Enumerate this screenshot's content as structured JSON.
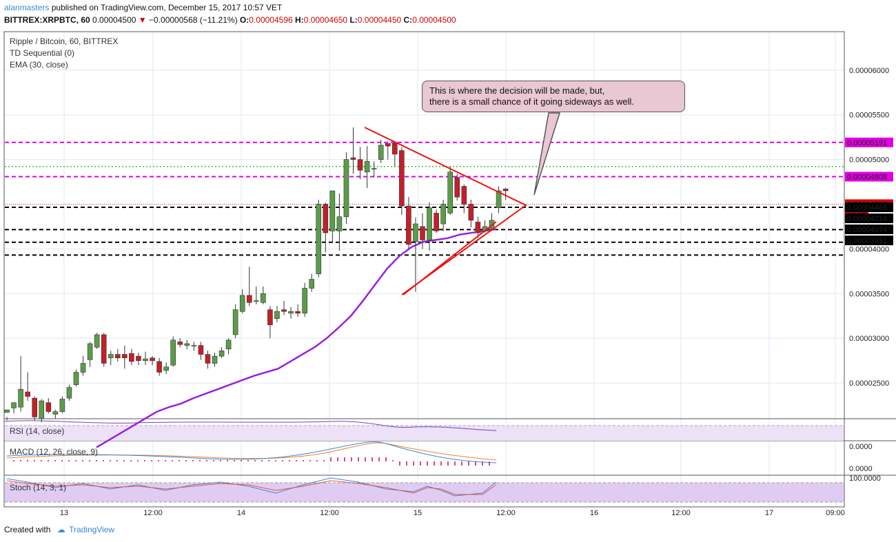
{
  "header": {
    "user": "alanmasters",
    "published_text": "published on TradingView.com, December 15, 2017 10:57 VET",
    "symbol": "BITTREX:XRPBTC, 60",
    "last": "0.00004500",
    "change": "−0.00000568 (−11.21%)",
    "o_label": "O:",
    "o": "0.00004596",
    "h_label": "H:",
    "h": "0.00004650",
    "l_label": "L:",
    "l": "0.00004450",
    "c_label": "C:",
    "c": "0.00004500"
  },
  "legend": {
    "title": "Ripple / Bitcoin, 60, BITTREX",
    "td": "TD Sequential (0)",
    "ema": "EMA (30, close)",
    "rsi": "RSI (14, close)",
    "macd": "MACD (12, 26, close, 9)",
    "stoch": "Stoch (14, 3, 1)"
  },
  "annotation": "This is where the decision will be made, but,\nthere is a small chance of it going sideways as well.",
  "price_axis": {
    "ticks": [
      "0.00006000",
      "0.00005500",
      "0.00005000",
      "0.00004500",
      "0.00004000",
      "0.00003500",
      "0.00003000",
      "0.00002500"
    ],
    "tags": [
      {
        "label": "0.00005191",
        "color": "#e000e0"
      },
      {
        "label": "0.00004808",
        "color": "#e000e0"
      },
      {
        "label": "0.00004500",
        "color": "#d00000"
      },
      {
        "label": "32:25",
        "color": "#d00000"
      },
      {
        "label": "0.00004465",
        "color": "#000000"
      },
      {
        "label": "0.00004216",
        "color": "#000000"
      },
      {
        "label": "0.00004074",
        "color": "#000000"
      },
      {
        "label": "0.00003931",
        "color": "#000000"
      }
    ]
  },
  "macd_axis": [
    "0.0000",
    "0.0000"
  ],
  "stoch_axis": [
    "100.0000"
  ],
  "time_axis": [
    "13",
    "12:00",
    "14",
    "12:00",
    "15",
    "12:00",
    "16",
    "12:00",
    "17",
    "09:00"
  ],
  "footer": {
    "created": "Created with",
    "brand": "TradingView"
  },
  "colors": {
    "up": "#5b9c4a",
    "down": "#c3202a",
    "ema": "#9a1fdc",
    "magenta": "#e000e0",
    "green": "#22cc22",
    "triangle": "#ee1111"
  },
  "chart_data": {
    "type": "candlestick",
    "title": "Ripple / Bitcoin, 60, BITTREX",
    "ylim": [
      2.1e-05,
      6.43e-05
    ],
    "yticks": [
      2.5e-05,
      3e-05,
      3.5e-05,
      4e-05,
      4.5e-05,
      5e-05,
      5.5e-05,
      6e-05
    ],
    "hlines": [
      {
        "value": 5.191e-05,
        "style": "magenta-dashed"
      },
      {
        "value": 4.922e-05,
        "style": "green-dotted"
      },
      {
        "value": 4.808e-05,
        "style": "magenta-dashed"
      },
      {
        "value": 4.5e-05,
        "style": "red-dotted"
      },
      {
        "value": 4.465e-05,
        "style": "black-dashed"
      },
      {
        "value": 4.216e-05,
        "style": "black-dashed"
      },
      {
        "value": 4.074e-05,
        "style": "black-dashed"
      },
      {
        "value": 3.931e-05,
        "style": "black-dashed"
      }
    ],
    "candles": [
      [
        2.17,
        2.2,
        2.12,
        2.08
      ],
      [
        2.22,
        2.28,
        2.22,
        2.16
      ],
      [
        2.23,
        2.43,
        2.8,
        2.18
      ],
      [
        2.4,
        2.35,
        2.62,
        2.3
      ],
      [
        2.33,
        2.12,
        2.35,
        2.08
      ],
      [
        2.1,
        2.3,
        2.32,
        2.06
      ],
      [
        2.28,
        2.18,
        2.33,
        2.16
      ],
      [
        2.15,
        2.18,
        2.2,
        2.1
      ],
      [
        2.18,
        2.32,
        2.35,
        2.16
      ],
      [
        2.33,
        2.45,
        2.48,
        2.3
      ],
      [
        2.48,
        2.62,
        2.65,
        2.46
      ],
      [
        2.62,
        2.72,
        2.8,
        2.58
      ],
      [
        2.76,
        2.94,
        2.96,
        2.68
      ],
      [
        2.9,
        3.04,
        3.06,
        2.88
      ],
      [
        3.04,
        2.72,
        3.06,
        2.68
      ],
      [
        2.78,
        2.82,
        2.86,
        2.7
      ],
      [
        2.82,
        2.78,
        2.88,
        2.74
      ],
      [
        2.82,
        2.78,
        2.92,
        2.66
      ],
      [
        2.83,
        2.74,
        2.88,
        2.7
      ],
      [
        2.8,
        2.75,
        2.84,
        2.7
      ],
      [
        2.75,
        2.77,
        2.85,
        2.7
      ],
      [
        2.78,
        2.75,
        2.8,
        2.7
      ],
      [
        2.74,
        2.62,
        2.78,
        2.58
      ],
      [
        2.64,
        2.68,
        2.73,
        2.6
      ],
      [
        2.7,
        2.98,
        3.02,
        2.68
      ],
      [
        2.96,
        2.93,
        3.0,
        2.9
      ],
      [
        2.92,
        2.94,
        2.98,
        2.88
      ],
      [
        2.92,
        2.92,
        2.96,
        2.86
      ],
      [
        2.92,
        2.82,
        2.96,
        2.76
      ],
      [
        2.82,
        2.72,
        2.86,
        2.66
      ],
      [
        2.72,
        2.8,
        2.84,
        2.68
      ],
      [
        2.8,
        2.86,
        2.9,
        2.78
      ],
      [
        2.88,
        2.98,
        3.0,
        2.82
      ],
      [
        3.04,
        3.32,
        3.38,
        3.0
      ],
      [
        3.3,
        3.48,
        3.55,
        3.28
      ],
      [
        3.48,
        3.4,
        3.8,
        3.36
      ],
      [
        3.42,
        3.42,
        3.58,
        3.38
      ],
      [
        3.4,
        3.5,
        3.58,
        3.38
      ],
      [
        3.32,
        3.15,
        3.36,
        3.0
      ],
      [
        3.22,
        3.3,
        3.36,
        3.18
      ],
      [
        3.32,
        3.3,
        3.42,
        3.26
      ],
      [
        3.28,
        3.3,
        3.35,
        3.22
      ],
      [
        3.3,
        3.28,
        3.38,
        3.24
      ],
      [
        3.28,
        3.56,
        3.62,
        3.24
      ],
      [
        3.56,
        3.66,
        3.72,
        3.52
      ],
      [
        3.72,
        4.5,
        4.55,
        3.68
      ],
      [
        4.5,
        4.18,
        4.52,
        3.96
      ],
      [
        4.2,
        4.65,
        4.65,
        4.08
      ],
      [
        4.2,
        4.36,
        4.62,
        3.98
      ],
      [
        4.36,
        5.0,
        5.08,
        4.28
      ],
      [
        5.02,
        5.0,
        5.36,
        4.84
      ],
      [
        5.0,
        4.88,
        5.14,
        4.78
      ],
      [
        4.86,
        4.98,
        5.15,
        4.68
      ],
      [
        4.9,
        4.9,
        4.98,
        4.8
      ],
      [
        5.0,
        5.16,
        5.22,
        4.96
      ],
      [
        5.18,
        5.15,
        5.18,
        5.0
      ],
      [
        5.18,
        5.06,
        5.2,
        4.92
      ],
      [
        5.1,
        4.48,
        5.14,
        4.38
      ],
      [
        4.48,
        4.05,
        4.58,
        4.0
      ],
      [
        4.08,
        4.28,
        4.35,
        3.52
      ],
      [
        4.25,
        4.1,
        4.4,
        4.0
      ],
      [
        4.1,
        4.46,
        4.52,
        3.98
      ],
      [
        4.4,
        4.2,
        4.44,
        4.18
      ],
      [
        4.28,
        4.5,
        4.55,
        4.2
      ],
      [
        4.4,
        4.86,
        4.92,
        4.38
      ],
      [
        4.8,
        4.58,
        4.84,
        4.54
      ],
      [
        4.7,
        4.5,
        4.72,
        4.4
      ],
      [
        4.5,
        4.32,
        4.55,
        4.24
      ],
      [
        4.3,
        4.18,
        4.36,
        4.12
      ],
      [
        4.2,
        4.25,
        4.32,
        4.18
      ],
      [
        4.22,
        4.32,
        4.4,
        4.2
      ],
      [
        4.46,
        4.65,
        4.7,
        4.4
      ],
      [
        4.67,
        4.65,
        4.68,
        4.55
      ]
    ],
    "ema_values": [
      1.78,
      1.86,
      1.94,
      2.02,
      2.1,
      2.18,
      2.23,
      2.27,
      2.33,
      2.38,
      2.43,
      2.48,
      2.53,
      2.58,
      2.62,
      2.66,
      2.74,
      2.82,
      2.9,
      3.0,
      3.12,
      3.25,
      3.42,
      3.6,
      3.78,
      3.92,
      4.02,
      4.08,
      4.1,
      4.12,
      4.16,
      4.18,
      4.2,
      4.22
    ]
  }
}
